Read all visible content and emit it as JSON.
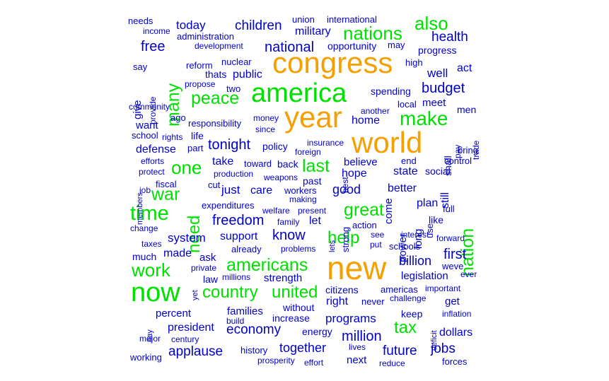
{
  "palette": {
    "orange": "#F5A000",
    "green": "#00E000",
    "blue": "#0000CC"
  },
  "words": [
    {
      "text": "congress",
      "color": "orange",
      "rot": 0
    },
    {
      "text": "year",
      "color": "orange",
      "rot": 0
    },
    {
      "text": "world",
      "color": "orange",
      "rot": 0
    },
    {
      "text": "new",
      "color": "orange",
      "rot": 0
    },
    {
      "text": "america",
      "color": "green",
      "rot": 0
    },
    {
      "text": "now",
      "color": "green",
      "rot": 0
    },
    {
      "text": "nations",
      "color": "green",
      "rot": 0
    },
    {
      "text": "also",
      "color": "green",
      "rot": 0
    },
    {
      "text": "make",
      "color": "green",
      "rot": 0
    },
    {
      "text": "peace",
      "color": "green",
      "rot": 0
    },
    {
      "text": "one",
      "color": "green",
      "rot": 0
    },
    {
      "text": "last",
      "color": "green",
      "rot": 0
    },
    {
      "text": "time",
      "color": "green",
      "rot": 0
    },
    {
      "text": "war",
      "color": "green",
      "rot": 0
    },
    {
      "text": "need",
      "color": "green",
      "rot": -90
    },
    {
      "text": "many",
      "color": "green",
      "rot": -90
    },
    {
      "text": "nation",
      "color": "green",
      "rot": -90
    },
    {
      "text": "help",
      "color": "green",
      "rot": 0
    },
    {
      "text": "work",
      "color": "green",
      "rot": 0
    },
    {
      "text": "americans",
      "color": "green",
      "rot": 0
    },
    {
      "text": "country",
      "color": "green",
      "rot": 0
    },
    {
      "text": "united",
      "color": "green",
      "rot": 0
    },
    {
      "text": "great",
      "color": "green",
      "rot": 0
    },
    {
      "text": "tax",
      "color": "green",
      "rot": 0
    },
    {
      "text": "needs",
      "color": "blue",
      "rot": 0
    },
    {
      "text": "income",
      "color": "blue",
      "rot": 0
    },
    {
      "text": "today",
      "color": "blue",
      "rot": 0
    },
    {
      "text": "administration",
      "color": "blue",
      "rot": 0
    },
    {
      "text": "children",
      "color": "blue",
      "rot": 0
    },
    {
      "text": "union",
      "color": "blue",
      "rot": 0
    },
    {
      "text": "military",
      "color": "blue",
      "rot": 0
    },
    {
      "text": "international",
      "color": "blue",
      "rot": 0
    },
    {
      "text": "health",
      "color": "blue",
      "rot": 0
    },
    {
      "text": "free",
      "color": "blue",
      "rot": 0
    },
    {
      "text": "development",
      "color": "blue",
      "rot": 0
    },
    {
      "text": "national",
      "color": "blue",
      "rot": 0
    },
    {
      "text": "opportunity",
      "color": "blue",
      "rot": 0
    },
    {
      "text": "may",
      "color": "blue",
      "rot": 0
    },
    {
      "text": "progress",
      "color": "blue",
      "rot": 0
    },
    {
      "text": "say",
      "color": "blue",
      "rot": 0
    },
    {
      "text": "reform",
      "color": "blue",
      "rot": 0
    },
    {
      "text": "nuclear",
      "color": "blue",
      "rot": 0
    },
    {
      "text": "high",
      "color": "blue",
      "rot": 0
    },
    {
      "text": "well",
      "color": "blue",
      "rot": 0
    },
    {
      "text": "act",
      "color": "blue",
      "rot": 0
    },
    {
      "text": "provide",
      "color": "blue",
      "rot": -90
    },
    {
      "text": "give",
      "color": "blue",
      "rot": -90
    },
    {
      "text": "thats",
      "color": "blue",
      "rot": 0
    },
    {
      "text": "public",
      "color": "blue",
      "rot": 0
    },
    {
      "text": "propose",
      "color": "blue",
      "rot": 0
    },
    {
      "text": "two",
      "color": "blue",
      "rot": 0
    },
    {
      "text": "budget",
      "color": "blue",
      "rot": 0
    },
    {
      "text": "spending",
      "color": "blue",
      "rot": 0
    },
    {
      "text": "community",
      "color": "blue",
      "rot": 0
    },
    {
      "text": "local",
      "color": "blue",
      "rot": 0
    },
    {
      "text": "meet",
      "color": "blue",
      "rot": 0
    },
    {
      "text": "another",
      "color": "blue",
      "rot": 0
    },
    {
      "text": "men",
      "color": "blue",
      "rot": 0
    },
    {
      "text": "ago",
      "color": "blue",
      "rot": 0
    },
    {
      "text": "money",
      "color": "blue",
      "rot": 0
    },
    {
      "text": "home",
      "color": "blue",
      "rot": 0
    },
    {
      "text": "want",
      "color": "blue",
      "rot": 0
    },
    {
      "text": "responsibility",
      "color": "blue",
      "rot": 0
    },
    {
      "text": "since",
      "color": "blue",
      "rot": 0
    },
    {
      "text": "trade",
      "color": "blue",
      "rot": -90
    },
    {
      "text": "school",
      "color": "blue",
      "rot": 0
    },
    {
      "text": "rights",
      "color": "blue",
      "rot": 0
    },
    {
      "text": "life",
      "color": "blue",
      "rot": 0
    },
    {
      "text": "tonight",
      "color": "blue",
      "rot": 0
    },
    {
      "text": "policy",
      "color": "blue",
      "rot": 0
    },
    {
      "text": "insurance",
      "color": "blue",
      "rot": 0
    },
    {
      "text": "shall",
      "color": "blue",
      "rot": -90
    },
    {
      "text": "pay",
      "color": "blue",
      "rot": -90
    },
    {
      "text": "bring",
      "color": "blue",
      "rot": 0
    },
    {
      "text": "defense",
      "color": "blue",
      "rot": 0
    },
    {
      "text": "part",
      "color": "blue",
      "rot": 0
    },
    {
      "text": "foreign",
      "color": "blue",
      "rot": 0
    },
    {
      "text": "members",
      "color": "blue",
      "rot": -90
    },
    {
      "text": "efforts",
      "color": "blue",
      "rot": 0
    },
    {
      "text": "take",
      "color": "blue",
      "rot": 0
    },
    {
      "text": "toward",
      "color": "blue",
      "rot": 0
    },
    {
      "text": "back",
      "color": "blue",
      "rot": 0
    },
    {
      "text": "best",
      "color": "blue",
      "rot": -90
    },
    {
      "text": "believe",
      "color": "blue",
      "rot": 0
    },
    {
      "text": "end",
      "color": "blue",
      "rot": 0
    },
    {
      "text": "control",
      "color": "blue",
      "rot": 0
    },
    {
      "text": "protect",
      "color": "blue",
      "rot": 0
    },
    {
      "text": "production",
      "color": "blue",
      "rot": 0
    },
    {
      "text": "weapons",
      "color": "blue",
      "rot": 0
    },
    {
      "text": "hope",
      "color": "blue",
      "rot": 0
    },
    {
      "text": "come",
      "color": "blue",
      "rot": -90
    },
    {
      "text": "state",
      "color": "blue",
      "rot": 0
    },
    {
      "text": "social",
      "color": "blue",
      "rot": 0
    },
    {
      "text": "fiscal",
      "color": "blue",
      "rot": 0
    },
    {
      "text": "cut",
      "color": "blue",
      "rot": 0
    },
    {
      "text": "past",
      "color": "blue",
      "rot": 0
    },
    {
      "text": "still",
      "color": "blue",
      "rot": -90
    },
    {
      "text": "job",
      "color": "blue",
      "rot": 0
    },
    {
      "text": "just",
      "color": "blue",
      "rot": 0
    },
    {
      "text": "care",
      "color": "blue",
      "rot": 0
    },
    {
      "text": "workers",
      "color": "blue",
      "rot": 0
    },
    {
      "text": "good",
      "color": "blue",
      "rot": 0
    },
    {
      "text": "better",
      "color": "blue",
      "rot": 0
    },
    {
      "text": "making",
      "color": "blue",
      "rot": 0
    },
    {
      "text": "expenditures",
      "color": "blue",
      "rot": 0
    },
    {
      "text": "plan",
      "color": "blue",
      "rot": 0
    },
    {
      "text": "full",
      "color": "blue",
      "rot": 0
    },
    {
      "text": "welfare",
      "color": "blue",
      "rot": 0
    },
    {
      "text": "present",
      "color": "blue",
      "rot": 0
    },
    {
      "text": "strong",
      "color": "blue",
      "rot": -90
    },
    {
      "text": "power",
      "color": "blue",
      "rot": -90
    },
    {
      "text": "long",
      "color": "blue",
      "rot": -90
    },
    {
      "text": "use",
      "color": "blue",
      "rot": -90
    },
    {
      "text": "like",
      "color": "blue",
      "rot": 0
    },
    {
      "text": "freedom",
      "color": "blue",
      "rot": 0
    },
    {
      "text": "family",
      "color": "blue",
      "rot": 0
    },
    {
      "text": "let",
      "color": "blue",
      "rot": 0
    },
    {
      "text": "change",
      "color": "blue",
      "rot": 0
    },
    {
      "text": "action",
      "color": "blue",
      "rot": 0
    },
    {
      "text": "system",
      "color": "blue",
      "rot": 0
    },
    {
      "text": "support",
      "color": "blue",
      "rot": 0
    },
    {
      "text": "know",
      "color": "blue",
      "rot": 0
    },
    {
      "text": "lets",
      "color": "blue",
      "rot": -90
    },
    {
      "text": "see",
      "color": "blue",
      "rot": 0
    },
    {
      "text": "interest",
      "color": "blue",
      "rot": 0
    },
    {
      "text": "forward",
      "color": "blue",
      "rot": 0
    },
    {
      "text": "taxes",
      "color": "blue",
      "rot": 0
    },
    {
      "text": "already",
      "color": "blue",
      "rot": 0
    },
    {
      "text": "problems",
      "color": "blue",
      "rot": 0
    },
    {
      "text": "put",
      "color": "blue",
      "rot": 0
    },
    {
      "text": "schools",
      "color": "blue",
      "rot": 0
    },
    {
      "text": "much",
      "color": "blue",
      "rot": 0
    },
    {
      "text": "made",
      "color": "blue",
      "rot": 0
    },
    {
      "text": "ask",
      "color": "blue",
      "rot": 0
    },
    {
      "text": "billion",
      "color": "blue",
      "rot": 0
    },
    {
      "text": "first",
      "color": "blue",
      "rot": 0
    },
    {
      "text": "weve",
      "color": "blue",
      "rot": 0
    },
    {
      "text": "private",
      "color": "blue",
      "rot": 0
    },
    {
      "text": "legislation",
      "color": "blue",
      "rot": 0
    },
    {
      "text": "ever",
      "color": "blue",
      "rot": 0
    },
    {
      "text": "law",
      "color": "blue",
      "rot": 0
    },
    {
      "text": "millions",
      "color": "blue",
      "rot": 0
    },
    {
      "text": "strength",
      "color": "blue",
      "rot": 0
    },
    {
      "text": "yet",
      "color": "blue",
      "rot": -90
    },
    {
      "text": "citizens",
      "color": "blue",
      "rot": 0
    },
    {
      "text": "americas",
      "color": "blue",
      "rot": 0
    },
    {
      "text": "important",
      "color": "blue",
      "rot": 0
    },
    {
      "text": "right",
      "color": "blue",
      "rot": 0
    },
    {
      "text": "never",
      "color": "blue",
      "rot": 0
    },
    {
      "text": "challenge",
      "color": "blue",
      "rot": 0
    },
    {
      "text": "get",
      "color": "blue",
      "rot": 0
    },
    {
      "text": "without",
      "color": "blue",
      "rot": 0
    },
    {
      "text": "percent",
      "color": "blue",
      "rot": 0
    },
    {
      "text": "families",
      "color": "blue",
      "rot": 0
    },
    {
      "text": "keep",
      "color": "blue",
      "rot": 0
    },
    {
      "text": "inflation",
      "color": "blue",
      "rot": 0
    },
    {
      "text": "build",
      "color": "blue",
      "rot": 0
    },
    {
      "text": "increase",
      "color": "blue",
      "rot": 0
    },
    {
      "text": "programs",
      "color": "blue",
      "rot": 0
    },
    {
      "text": "day",
      "color": "blue",
      "rot": -90
    },
    {
      "text": "deficit",
      "color": "blue",
      "rot": -90
    },
    {
      "text": "president",
      "color": "blue",
      "rot": 0
    },
    {
      "text": "economy",
      "color": "blue",
      "rot": 0
    },
    {
      "text": "energy",
      "color": "blue",
      "rot": 0
    },
    {
      "text": "million",
      "color": "blue",
      "rot": 0
    },
    {
      "text": "dollars",
      "color": "blue",
      "rot": 0
    },
    {
      "text": "major",
      "color": "blue",
      "rot": 0
    },
    {
      "text": "century",
      "color": "blue",
      "rot": 0
    },
    {
      "text": "applause",
      "color": "blue",
      "rot": 0
    },
    {
      "text": "history",
      "color": "blue",
      "rot": 0
    },
    {
      "text": "together",
      "color": "blue",
      "rot": 0
    },
    {
      "text": "lives",
      "color": "blue",
      "rot": 0
    },
    {
      "text": "future",
      "color": "blue",
      "rot": 0
    },
    {
      "text": "jobs",
      "color": "blue",
      "rot": 0
    },
    {
      "text": "working",
      "color": "blue",
      "rot": 0
    },
    {
      "text": "prosperity",
      "color": "blue",
      "rot": 0
    },
    {
      "text": "effort",
      "color": "blue",
      "rot": 0
    },
    {
      "text": "next",
      "color": "blue",
      "rot": 0
    },
    {
      "text": "reduce",
      "color": "blue",
      "rot": 0
    },
    {
      "text": "forces",
      "color": "blue",
      "rot": 0
    }
  ]
}
